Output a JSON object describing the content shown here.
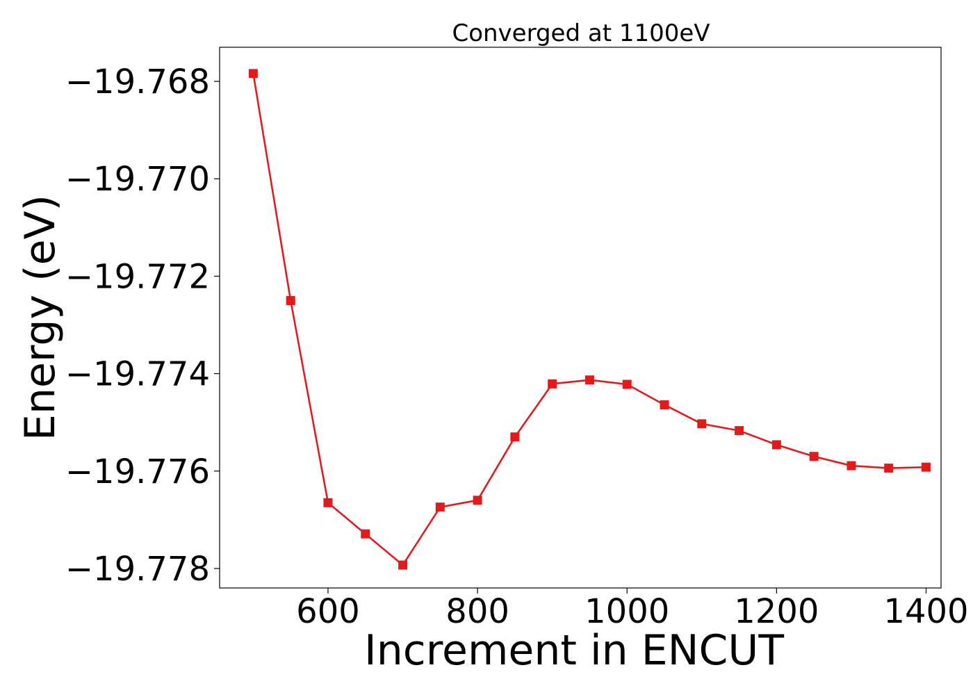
{
  "chart_data": {
    "type": "line",
    "title": "Converged at 1100eV",
    "xlabel": "Increment in ENCUT",
    "ylabel": "Energy (eV)",
    "xlim": [
      455,
      1420
    ],
    "ylim": [
      -19.7784,
      -19.7673
    ],
    "x_ticks": [
      600,
      800,
      1000,
      1200,
      1400
    ],
    "y_ticks": [
      -19.768,
      -19.77,
      -19.772,
      -19.774,
      -19.776,
      -19.778
    ],
    "y_tick_labels": [
      "−19.768",
      "−19.770",
      "−19.772",
      "−19.774",
      "−19.776",
      "−19.778"
    ],
    "grid": false,
    "series": [
      {
        "color": "#e31a1c",
        "marker": "square",
        "x": [
          500,
          550,
          600,
          650,
          700,
          750,
          800,
          850,
          900,
          950,
          1000,
          1050,
          1100,
          1150,
          1200,
          1250,
          1300,
          1350,
          1400
        ],
        "y": [
          -19.76784,
          -19.7725,
          -19.77665,
          -19.77729,
          -19.77793,
          -19.77674,
          -19.7766,
          -19.7753,
          -19.77421,
          -19.77413,
          -19.77422,
          -19.77464,
          -19.77503,
          -19.77517,
          -19.77546,
          -19.7757,
          -19.77589,
          -19.77594,
          -19.77592
        ]
      }
    ]
  }
}
